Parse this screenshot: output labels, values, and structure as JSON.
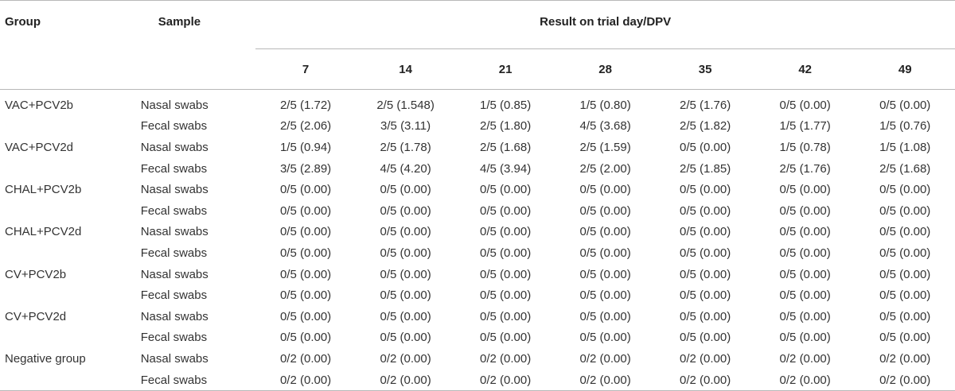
{
  "table": {
    "headers": {
      "group": "Group",
      "sample": "Sample",
      "span": "Result on trial day/DPV",
      "days": [
        "7",
        "14",
        "21",
        "28",
        "35",
        "42",
        "49"
      ]
    },
    "rows": [
      {
        "group": "VAC+PCV2b",
        "sample": "Nasal swabs",
        "values": [
          "2/5 (1.72)",
          "2/5 (1.548)",
          "1/5 (0.85)",
          "1/5 (0.80)",
          "2/5 (1.76)",
          "0/5 (0.00)",
          "0/5 (0.00)"
        ]
      },
      {
        "group": "",
        "sample": "Fecal swabs",
        "values": [
          "2/5 (2.06)",
          "3/5 (3.11)",
          "2/5 (1.80)",
          "4/5 (3.68)",
          "2/5 (1.82)",
          "1/5 (1.77)",
          "1/5 (0.76)"
        ]
      },
      {
        "group": "VAC+PCV2d",
        "sample": "Nasal swabs",
        "values": [
          "1/5 (0.94)",
          "2/5 (1.78)",
          "2/5 (1.68)",
          "2/5 (1.59)",
          "0/5 (0.00)",
          "1/5 (0.78)",
          "1/5 (1.08)"
        ]
      },
      {
        "group": "",
        "sample": "Fecal swabs",
        "values": [
          "3/5 (2.89)",
          "4/5 (4.20)",
          "4/5 (3.94)",
          "2/5 (2.00)",
          "2/5 (1.85)",
          "2/5 (1.76)",
          "2/5 (1.68)"
        ]
      },
      {
        "group": "CHAL+PCV2b",
        "sample": "Nasal swabs",
        "values": [
          "0/5 (0.00)",
          "0/5 (0.00)",
          "0/5 (0.00)",
          "0/5 (0.00)",
          "0/5 (0.00)",
          "0/5 (0.00)",
          "0/5 (0.00)"
        ]
      },
      {
        "group": "",
        "sample": "Fecal swabs",
        "values": [
          "0/5 (0.00)",
          "0/5 (0.00)",
          "0/5 (0.00)",
          "0/5 (0.00)",
          "0/5 (0.00)",
          "0/5 (0.00)",
          "0/5 (0.00)"
        ]
      },
      {
        "group": "CHAL+PCV2d",
        "sample": "Nasal swabs",
        "values": [
          "0/5 (0.00)",
          "0/5 (0.00)",
          "0/5 (0.00)",
          "0/5 (0.00)",
          "0/5 (0.00)",
          "0/5 (0.00)",
          "0/5 (0.00)"
        ]
      },
      {
        "group": "",
        "sample": "Fecal swabs",
        "values": [
          "0/5 (0.00)",
          "0/5 (0.00)",
          "0/5 (0.00)",
          "0/5 (0.00)",
          "0/5 (0.00)",
          "0/5 (0.00)",
          "0/5 (0.00)"
        ]
      },
      {
        "group": "CV+PCV2b",
        "sample": "Nasal swabs",
        "values": [
          "0/5 (0.00)",
          "0/5 (0.00)",
          "0/5 (0.00)",
          "0/5 (0.00)",
          "0/5 (0.00)",
          "0/5 (0.00)",
          "0/5 (0.00)"
        ]
      },
      {
        "group": "",
        "sample": "Fecal swabs",
        "values": [
          "0/5 (0.00)",
          "0/5 (0.00)",
          "0/5 (0.00)",
          "0/5 (0.00)",
          "0/5 (0.00)",
          "0/5 (0.00)",
          "0/5 (0.00)"
        ]
      },
      {
        "group": "CV+PCV2d",
        "sample": "Nasal swabs",
        "values": [
          "0/5 (0.00)",
          "0/5 (0.00)",
          "0/5 (0.00)",
          "0/5 (0.00)",
          "0/5 (0.00)",
          "0/5 (0.00)",
          "0/5 (0.00)"
        ]
      },
      {
        "group": "",
        "sample": "Fecal swabs",
        "values": [
          "0/5 (0.00)",
          "0/5 (0.00)",
          "0/5 (0.00)",
          "0/5 (0.00)",
          "0/5 (0.00)",
          "0/5 (0.00)",
          "0/5 (0.00)"
        ]
      },
      {
        "group": "Negative group",
        "sample": "Nasal swabs",
        "values": [
          "0/2 (0.00)",
          "0/2 (0.00)",
          "0/2 (0.00)",
          "0/2 (0.00)",
          "0/2 (0.00)",
          "0/2 (0.00)",
          "0/2 (0.00)"
        ]
      },
      {
        "group": "",
        "sample": "Fecal swabs",
        "values": [
          "0/2 (0.00)",
          "0/2 (0.00)",
          "0/2 (0.00)",
          "0/2 (0.00)",
          "0/2 (0.00)",
          "0/2 (0.00)",
          "0/2 (0.00)"
        ]
      }
    ]
  }
}
